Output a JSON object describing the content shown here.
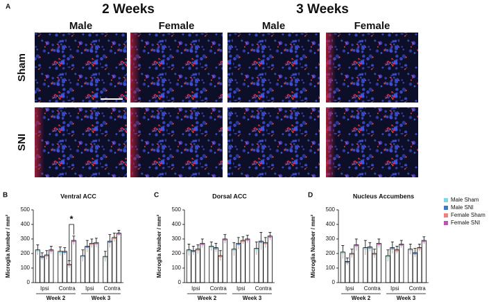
{
  "figure": {
    "panel_label": "A",
    "time_labels": [
      "2 Weeks",
      "3 Weeks"
    ],
    "column_labels": [
      "Male",
      "Female",
      "Male",
      "Female"
    ],
    "row_labels": [
      "Sham",
      "SNI"
    ]
  },
  "chart_data": [
    {
      "type": "bar",
      "panel_label": "B",
      "title": "Ventral ACC",
      "ylabel": "Microglia Number / mm²",
      "categories": [
        "Ipsi",
        "Contra",
        "Ipsi",
        "Contra"
      ],
      "groups": [
        "Week 2",
        "Week 3"
      ],
      "ylim": [
        0,
        500
      ],
      "yticks": [
        0,
        100,
        200,
        300,
        400,
        500
      ],
      "annotations": [
        "*"
      ],
      "series": [
        {
          "name": "Male Sham",
          "color": "#7fd6e4",
          "values": [
            225,
            215,
            185,
            180
          ],
          "errors": [
            35,
            30,
            40,
            35
          ]
        },
        {
          "name": "Male SNI",
          "color": "#3b78c8",
          "values": [
            180,
            215,
            250,
            285
          ],
          "errors": [
            25,
            25,
            40,
            45
          ]
        },
        {
          "name": "Female Sham",
          "color": "#f0827a",
          "values": [
            190,
            125,
            270,
            310
          ],
          "errors": [
            30,
            25,
            30,
            30
          ]
        },
        {
          "name": "Female SNI",
          "color": "#c24fb4",
          "values": [
            225,
            290,
            275,
            340
          ],
          "errors": [
            25,
            30,
            30,
            20
          ]
        }
      ]
    },
    {
      "type": "bar",
      "panel_label": "C",
      "title": "Dorsal ACC",
      "ylabel": "Microglia Number / mm²",
      "categories": [
        "Ipsi",
        "Contra",
        "Ipsi",
        "Contra"
      ],
      "groups": [
        "Week 2",
        "Week 3"
      ],
      "ylim": [
        0,
        500
      ],
      "yticks": [
        0,
        100,
        200,
        300,
        400,
        500
      ],
      "series": [
        {
          "name": "Male Sham",
          "color": "#7fd6e4",
          "values": [
            225,
            250,
            230,
            235
          ],
          "errors": [
            40,
            30,
            45,
            45
          ]
        },
        {
          "name": "Male SNI",
          "color": "#3b78c8",
          "values": [
            220,
            240,
            270,
            285
          ],
          "errors": [
            30,
            30,
            40,
            60
          ]
        },
        {
          "name": "Female Sham",
          "color": "#f0827a",
          "values": [
            230,
            185,
            290,
            275
          ],
          "errors": [
            30,
            35,
            25,
            35
          ]
        },
        {
          "name": "Female SNI",
          "color": "#c24fb4",
          "values": [
            270,
            300,
            300,
            320
          ],
          "errors": [
            30,
            30,
            25,
            25
          ]
        }
      ]
    },
    {
      "type": "bar",
      "panel_label": "D",
      "title": "Nucleus Accumbens",
      "ylabel": "Microglia Number / mm²",
      "categories": [
        "Ipsi",
        "Contra",
        "Ipsi",
        "Contra"
      ],
      "groups": [
        "Week 2",
        "Week 3"
      ],
      "ylim": [
        0,
        500
      ],
      "yticks": [
        0,
        100,
        200,
        300,
        400,
        500
      ],
      "series": [
        {
          "name": "Male Sham",
          "color": "#7fd6e4",
          "values": [
            210,
            240,
            185,
            230
          ],
          "errors": [
            45,
            50,
            40,
            35
          ]
        },
        {
          "name": "Male SNI",
          "color": "#3b78c8",
          "values": [
            145,
            245,
            240,
            205
          ],
          "errors": [
            25,
            30,
            40,
            30
          ]
        },
        {
          "name": "Female Sham",
          "color": "#f0827a",
          "values": [
            200,
            200,
            225,
            240
          ],
          "errors": [
            30,
            30,
            25,
            25
          ]
        },
        {
          "name": "Female SNI",
          "color": "#c24fb4",
          "values": [
            260,
            270,
            265,
            290
          ],
          "errors": [
            40,
            30,
            25,
            25
          ]
        }
      ]
    }
  ]
}
